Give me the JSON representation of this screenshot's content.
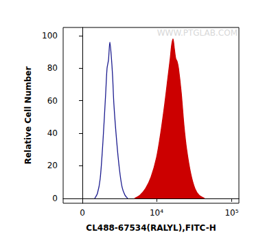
{
  "chart_data": {
    "type": "histogram",
    "x_label": "CL488-67534(RALYL),FITC-H",
    "y_label": "Relative Cell Number",
    "watermark": "WWW.PTGLAB.COM",
    "xlim": [
      -1310,
      124500
    ],
    "xticks": [
      0,
      {
        "value": 10000,
        "label": "10⁴"
      },
      {
        "value": 100000,
        "label": "10⁵"
      }
    ],
    "ylim": [
      -3,
      105
    ],
    "yticks": [
      0,
      20,
      40,
      60,
      80,
      100
    ],
    "grid": false,
    "series": [
      {
        "type": "line",
        "color": "#1c1c8f",
        "x": [
          810,
          1000,
          1200,
          1410,
          1630,
          1740,
          1860,
          1980,
          2100,
          2230,
          2350,
          2630,
          2920,
          3220,
          3570,
          3930
        ],
        "values": [
          0,
          3,
          12,
          35,
          65,
          80,
          85,
          96,
          88,
          75,
          58,
          35,
          18,
          7,
          2,
          0
        ]
      },
      {
        "type": "area",
        "color": "#cc0000",
        "x": [
          4960,
          5930,
          7080,
          8410,
          9990,
          11370,
          12890,
          14030,
          15280,
          15930,
          16630,
          17340,
          18080,
          18880,
          19690,
          21420,
          23270,
          25300,
          28720,
          32580,
          36930,
          43680
        ],
        "values": [
          0,
          2,
          6,
          13,
          25,
          40,
          58,
          72,
          86,
          94,
          98,
          92,
          86,
          84,
          80,
          65,
          45,
          30,
          15,
          6,
          2,
          0
        ]
      }
    ]
  }
}
